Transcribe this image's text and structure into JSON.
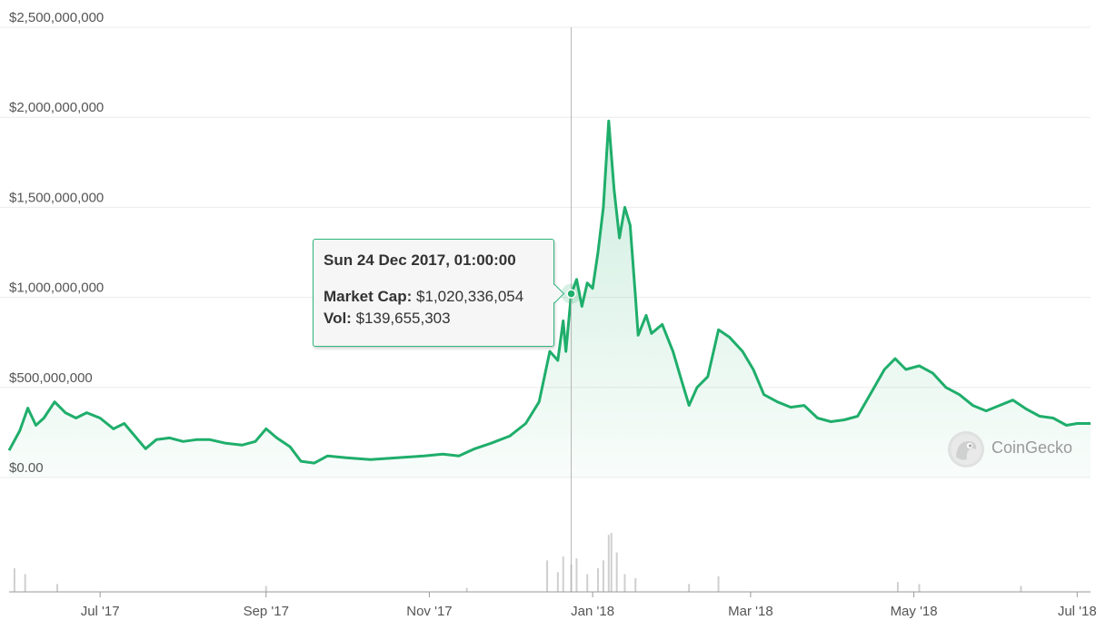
{
  "chart_data": {
    "type": "area",
    "y_axis": {
      "ticks": [
        "$2,500,000,000",
        "$2,000,000,000",
        "$1,500,000,000",
        "$1,000,000,000",
        "$500,000,000",
        "$0.00"
      ],
      "values": [
        2500000000,
        2000000000,
        1500000000,
        1000000000,
        500000000,
        0
      ],
      "range": [
        0,
        2500000000
      ]
    },
    "x_axis": {
      "ticks": [
        "Jul '17",
        "Sep '17",
        "Nov '17",
        "Jan '18",
        "Mar '18",
        "May '18",
        "Jul '18"
      ],
      "tick_dates": [
        "2017-07-01",
        "2017-09-01",
        "2017-11-01",
        "2018-01-01",
        "2018-03-01",
        "2018-05-01",
        "2018-07-01"
      ],
      "range": [
        "2017-05-28",
        "2018-07-06"
      ]
    },
    "grid": true,
    "line_color": "#1fae6b",
    "series": [
      {
        "values": [
          [
            "2017-05-28",
            150000000
          ],
          [
            "2017-06-01",
            260000000
          ],
          [
            "2017-06-04",
            385000000
          ],
          [
            "2017-06-07",
            290000000
          ],
          [
            "2017-06-10",
            330000000
          ],
          [
            "2017-06-14",
            420000000
          ],
          [
            "2017-06-18",
            360000000
          ],
          [
            "2017-06-22",
            330000000
          ],
          [
            "2017-06-26",
            360000000
          ],
          [
            "2017-07-01",
            330000000
          ],
          [
            "2017-07-06",
            270000000
          ],
          [
            "2017-07-10",
            300000000
          ],
          [
            "2017-07-14",
            230000000
          ],
          [
            "2017-07-18",
            160000000
          ],
          [
            "2017-07-22",
            210000000
          ],
          [
            "2017-07-27",
            220000000
          ],
          [
            "2017-08-01",
            200000000
          ],
          [
            "2017-08-06",
            210000000
          ],
          [
            "2017-08-11",
            210000000
          ],
          [
            "2017-08-17",
            190000000
          ],
          [
            "2017-08-23",
            180000000
          ],
          [
            "2017-08-28",
            200000000
          ],
          [
            "2017-09-01",
            270000000
          ],
          [
            "2017-09-05",
            220000000
          ],
          [
            "2017-09-10",
            170000000
          ],
          [
            "2017-09-14",
            90000000
          ],
          [
            "2017-09-19",
            80000000
          ],
          [
            "2017-09-24",
            120000000
          ],
          [
            "2017-10-01",
            110000000
          ],
          [
            "2017-10-10",
            100000000
          ],
          [
            "2017-10-20",
            110000000
          ],
          [
            "2017-10-30",
            120000000
          ],
          [
            "2017-11-06",
            130000000
          ],
          [
            "2017-11-12",
            120000000
          ],
          [
            "2017-11-18",
            160000000
          ],
          [
            "2017-11-24",
            190000000
          ],
          [
            "2017-12-01",
            230000000
          ],
          [
            "2017-12-07",
            300000000
          ],
          [
            "2017-12-12",
            420000000
          ],
          [
            "2017-12-16",
            700000000
          ],
          [
            "2017-12-19",
            650000000
          ],
          [
            "2017-12-21",
            870000000
          ],
          [
            "2017-12-22",
            700000000
          ],
          [
            "2017-12-24",
            1020336054
          ],
          [
            "2017-12-26",
            1100000000
          ],
          [
            "2017-12-28",
            950000000
          ],
          [
            "2017-12-30",
            1080000000
          ],
          [
            "2018-01-01",
            1050000000
          ],
          [
            "2018-01-03",
            1250000000
          ],
          [
            "2018-01-05",
            1500000000
          ],
          [
            "2018-01-07",
            1980000000
          ],
          [
            "2018-01-09",
            1600000000
          ],
          [
            "2018-01-11",
            1330000000
          ],
          [
            "2018-01-13",
            1500000000
          ],
          [
            "2018-01-15",
            1400000000
          ],
          [
            "2018-01-17",
            1000000000
          ],
          [
            "2018-01-18",
            790000000
          ],
          [
            "2018-01-21",
            900000000
          ],
          [
            "2018-01-23",
            800000000
          ],
          [
            "2018-01-27",
            850000000
          ],
          [
            "2018-01-31",
            700000000
          ],
          [
            "2018-02-03",
            550000000
          ],
          [
            "2018-02-06",
            400000000
          ],
          [
            "2018-02-09",
            500000000
          ],
          [
            "2018-02-13",
            560000000
          ],
          [
            "2018-02-17",
            820000000
          ],
          [
            "2018-02-21",
            780000000
          ],
          [
            "2018-02-26",
            700000000
          ],
          [
            "2018-03-02",
            600000000
          ],
          [
            "2018-03-06",
            460000000
          ],
          [
            "2018-03-11",
            420000000
          ],
          [
            "2018-03-16",
            390000000
          ],
          [
            "2018-03-21",
            400000000
          ],
          [
            "2018-03-26",
            330000000
          ],
          [
            "2018-03-31",
            310000000
          ],
          [
            "2018-04-05",
            320000000
          ],
          [
            "2018-04-10",
            340000000
          ],
          [
            "2018-04-15",
            470000000
          ],
          [
            "2018-04-20",
            600000000
          ],
          [
            "2018-04-24",
            660000000
          ],
          [
            "2018-04-28",
            600000000
          ],
          [
            "2018-05-03",
            620000000
          ],
          [
            "2018-05-08",
            580000000
          ],
          [
            "2018-05-13",
            500000000
          ],
          [
            "2018-05-18",
            460000000
          ],
          [
            "2018-05-23",
            400000000
          ],
          [
            "2018-05-28",
            370000000
          ],
          [
            "2018-06-02",
            400000000
          ],
          [
            "2018-06-07",
            430000000
          ],
          [
            "2018-06-12",
            380000000
          ],
          [
            "2018-06-17",
            340000000
          ],
          [
            "2018-06-22",
            330000000
          ],
          [
            "2018-06-27",
            290000000
          ],
          [
            "2018-07-01",
            300000000
          ],
          [
            "2018-07-06",
            300000000
          ]
        ]
      }
    ],
    "volume": [
      [
        "2017-05-30",
        120000000
      ],
      [
        "2017-06-03",
        90000000
      ],
      [
        "2017-06-15",
        40000000
      ],
      [
        "2017-09-01",
        30000000
      ],
      [
        "2017-11-15",
        20000000
      ],
      [
        "2017-12-15",
        160000000
      ],
      [
        "2017-12-19",
        100000000
      ],
      [
        "2017-12-21",
        180000000
      ],
      [
        "2017-12-24",
        139655303
      ],
      [
        "2017-12-26",
        170000000
      ],
      [
        "2017-12-30",
        90000000
      ],
      [
        "2018-01-03",
        120000000
      ],
      [
        "2018-01-05",
        160000000
      ],
      [
        "2018-01-07",
        290000000
      ],
      [
        "2018-01-08",
        300000000
      ],
      [
        "2018-01-10",
        200000000
      ],
      [
        "2018-01-13",
        90000000
      ],
      [
        "2018-01-17",
        70000000
      ],
      [
        "2018-02-06",
        40000000
      ],
      [
        "2018-02-17",
        80000000
      ],
      [
        "2018-04-25",
        50000000
      ],
      [
        "2018-05-03",
        40000000
      ],
      [
        "2018-06-10",
        30000000
      ]
    ],
    "hover": {
      "date": "2017-12-24",
      "value": 1020336054
    }
  },
  "tooltip": {
    "date": "Sun 24 Dec 2017, 01:00:00",
    "cap_label": "Market Cap:",
    "cap_value": "$1,020,336,054",
    "vol_label": "Vol:",
    "vol_value": "$139,655,303"
  },
  "watermark": {
    "brand": "CoinGecko"
  }
}
